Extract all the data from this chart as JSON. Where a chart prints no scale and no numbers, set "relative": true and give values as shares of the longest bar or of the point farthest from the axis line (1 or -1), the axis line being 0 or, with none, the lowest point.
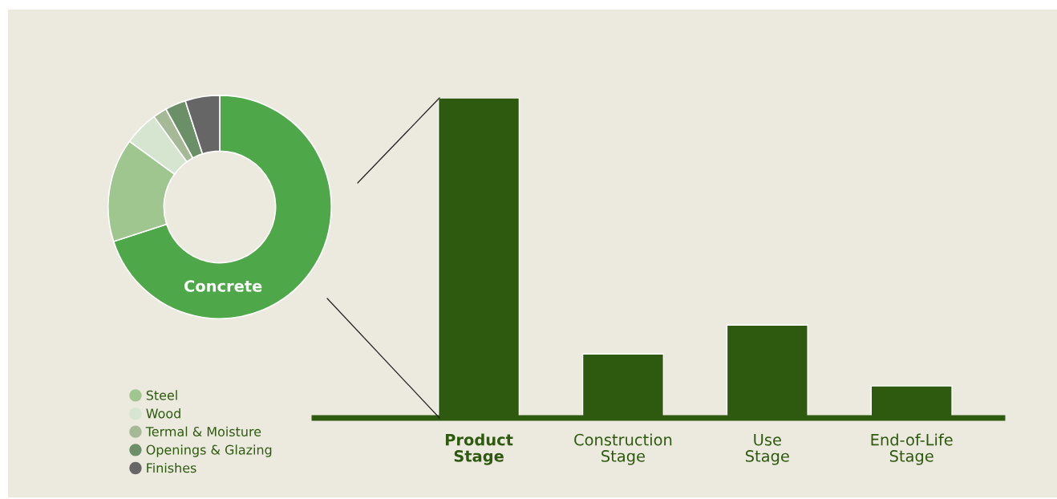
{
  "chart_data": [
    {
      "type": "donut",
      "categories": [
        "Concrete",
        "Steel",
        "Wood",
        "Termal & Moisture",
        "Openings & Glazing",
        "Finishes"
      ],
      "values": [
        70,
        15,
        5,
        2,
        3,
        5
      ],
      "colors": [
        "#4ea84a",
        "#a0c68f",
        "#d5e5cf",
        "#a6b996",
        "#6b8f66",
        "#666666"
      ],
      "legend": "bottom left"
    },
    {
      "type": "bar",
      "categories": [
        "Product\nStage",
        "Construction\nStage",
        "Use\nStage",
        "End-of-Life\nStage"
      ],
      "values": [
        1,
        0.2,
        0.29,
        0.1
      ],
      "color": "#2d5a0e",
      "relative": true
    }
  ]
}
